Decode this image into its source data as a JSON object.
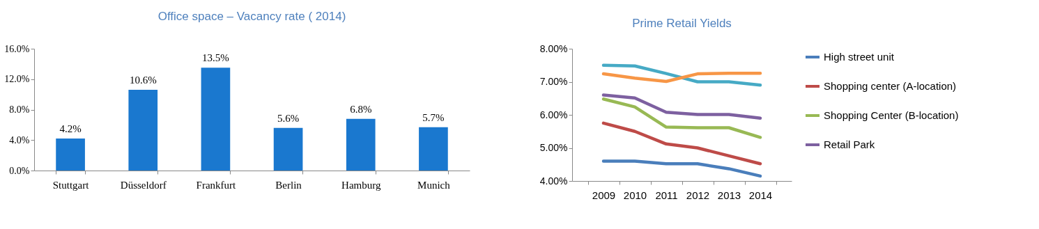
{
  "chart_data": [
    {
      "type": "bar",
      "title": "Office space – Vacancy rate ( 2014)",
      "categories": [
        "Stuttgart",
        "Düsseldorf",
        "Frankfurt",
        "Berlin",
        "Hamburg",
        "Munich"
      ],
      "values": [
        4.2,
        10.6,
        13.5,
        5.6,
        6.8,
        5.7
      ],
      "value_labels": [
        "4.2%",
        "10.6%",
        "13.5%",
        "5.6%",
        "6.8%",
        "5.7%"
      ],
      "color": "#1a78cf",
      "ylim": [
        0,
        16
      ],
      "yticks": [
        {
          "value": 0,
          "label": "0.0%"
        },
        {
          "value": 4,
          "label": "4.0%"
        },
        {
          "value": 8,
          "label": "8.0%"
        },
        {
          "value": 12,
          "label": "12.0%"
        },
        {
          "value": 16,
          "label": "16.0%"
        }
      ],
      "grid": false
    },
    {
      "type": "line",
      "title": "Prime Retail Yields",
      "categories": [
        "2009",
        "2010",
        "2011",
        "2012",
        "2013",
        "2014"
      ],
      "ylim": [
        4,
        8
      ],
      "yticks": [
        {
          "value": 4,
          "label": "4.00%"
        },
        {
          "value": 5,
          "label": "5.00%"
        },
        {
          "value": 6,
          "label": "6.00%"
        },
        {
          "value": 7,
          "label": "7.00%"
        },
        {
          "value": 8,
          "label": "8.00%"
        }
      ],
      "grid": false,
      "legend": "right",
      "marker": "none",
      "line_style": "solid",
      "series": [
        {
          "name": "High street unit",
          "color": "#4a7ebb",
          "values": [
            4.6,
            4.6,
            4.52,
            4.52,
            4.37,
            4.15
          ]
        },
        {
          "name": "Shopping center (A-location)",
          "color": "#be4b48",
          "values": [
            5.75,
            5.5,
            5.12,
            5.0,
            4.76,
            4.52
          ]
        },
        {
          "name": "Shopping Center (B-location)",
          "color": "#98b954",
          "values": [
            6.48,
            6.24,
            5.63,
            5.61,
            5.61,
            5.32
          ]
        },
        {
          "name": "Retail Park",
          "color": "#7d60a0",
          "values": [
            6.6,
            6.51,
            6.08,
            6.01,
            6.01,
            5.9
          ]
        },
        {
          "color": "#46aac5",
          "values": [
            7.5,
            7.48,
            7.25,
            7.0,
            7.0,
            6.9
          ]
        },
        {
          "color": "#f79646",
          "values": [
            7.24,
            7.11,
            7.01,
            7.24,
            7.26,
            7.26
          ]
        }
      ]
    }
  ]
}
